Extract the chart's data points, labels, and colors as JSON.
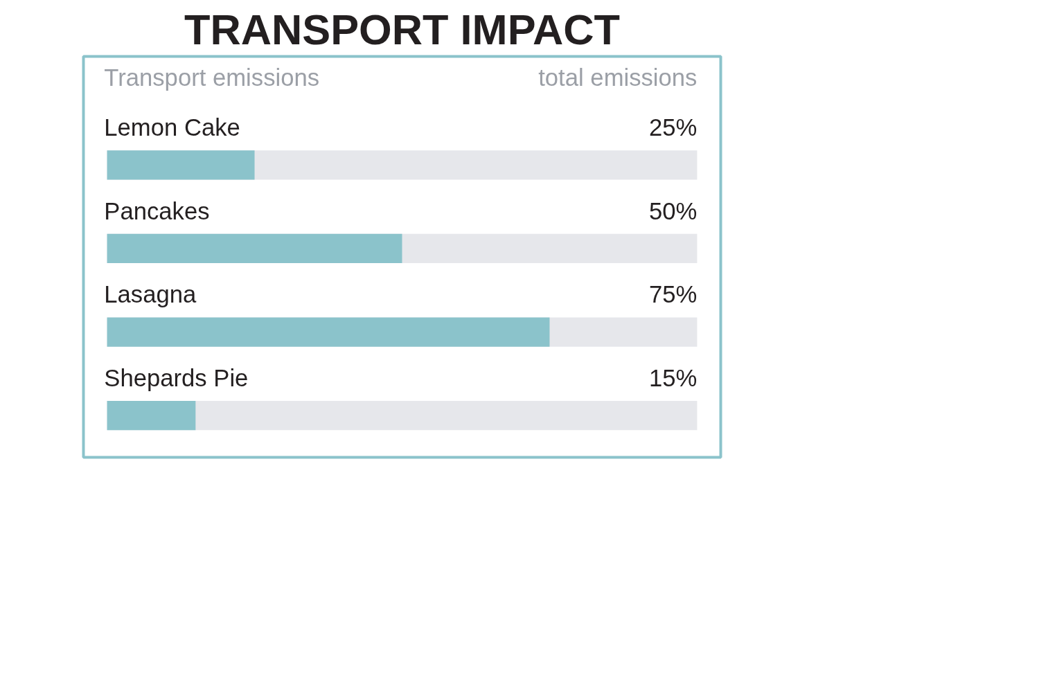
{
  "chart_data": {
    "type": "bar",
    "orientation": "horizontal",
    "title": "TRANSPORT IMPACT",
    "annotations": [
      "Transport emissions",
      "total emissions"
    ],
    "categories": [
      "Lemon Cake",
      "Pancakes",
      "Lasagna",
      "Shepards Pie"
    ],
    "values": [
      25,
      50,
      75,
      15
    ],
    "value_labels": [
      "25%",
      "50%",
      "75%",
      "15%"
    ],
    "color": "#8bc3cb",
    "xlim": [
      0,
      100
    ],
    "tick_labels": false,
    "grid": false
  }
}
